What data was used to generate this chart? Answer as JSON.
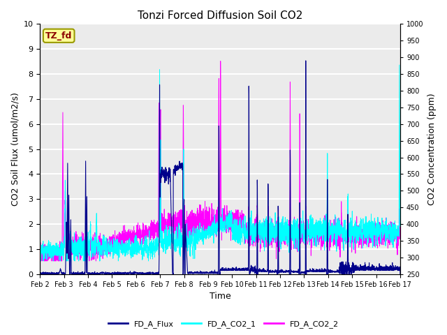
{
  "title": "Tonzi Forced Diffusion Soil CO2",
  "xlabel": "Time",
  "ylabel_left": "CO2 Soil Flux (umol/m2/s)",
  "ylabel_right": "CO2 Concentration (ppm)",
  "ylim_left": [
    0.0,
    10.0
  ],
  "ylim_right": [
    250,
    1000
  ],
  "yticks_left": [
    0.0,
    1.0,
    2.0,
    3.0,
    4.0,
    5.0,
    6.0,
    7.0,
    8.0,
    9.0,
    10.0
  ],
  "yticks_right": [
    250,
    300,
    350,
    400,
    450,
    500,
    550,
    600,
    650,
    700,
    750,
    800,
    850,
    900,
    950,
    1000
  ],
  "xtick_labels": [
    "Feb 2",
    "Feb 3",
    "Feb 4",
    "Feb 5",
    "Feb 6",
    "Feb 7",
    "Feb 8",
    "Feb 9",
    "Feb 10",
    "Feb 11",
    "Feb 12",
    "Feb 13",
    "Feb 14",
    "Feb 15",
    "Feb 16",
    "Feb 17"
  ],
  "color_flux": "#00008B",
  "color_co2_1": "#00FFFF",
  "color_co2_2": "#FF00FF",
  "label_flux": "FD_A_Flux",
  "label_co2_1": "FD_A_CO2_1",
  "label_co2_2": "FD_A_CO2_2",
  "station_label": "TZ_fd",
  "station_label_color": "#8B0000",
  "station_box_facecolor": "#FFFF99",
  "station_box_edgecolor": "#999900",
  "plot_bg_color": "#EBEBEB",
  "grid_color": "white",
  "n_points": 3000,
  "seed": 7
}
